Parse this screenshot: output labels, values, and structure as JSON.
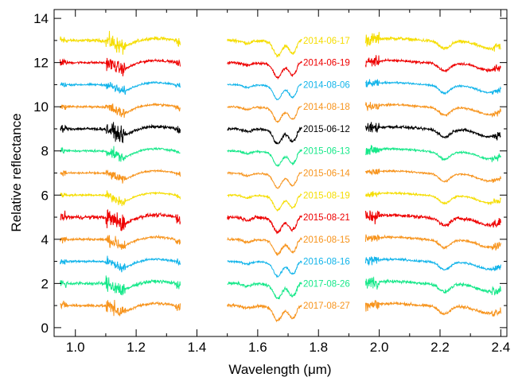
{
  "chart_data": {
    "type": "line",
    "title": "",
    "xlabel": "Wavelength (μm)",
    "ylabel": "Relative reflectance",
    "xlim": [
      0.93,
      2.42
    ],
    "ylim": [
      -0.4,
      14.4
    ],
    "xticks": [
      1.0,
      1.2,
      1.4,
      1.6,
      1.8,
      2.0,
      2.2,
      2.4
    ],
    "xtick_labels": [
      "1.0",
      "1.2",
      "1.4",
      "1.6",
      "1.8",
      "2.0",
      "2.2",
      "2.4"
    ],
    "yticks": [
      0,
      2,
      4,
      6,
      8,
      10,
      12,
      14
    ],
    "ytick_labels": [
      "0",
      "2",
      "4",
      "6",
      "8",
      "10",
      "12",
      "14"
    ],
    "grid": false,
    "wavelength_segments": [
      [
        0.95,
        1.345
      ],
      [
        1.5,
        1.745
      ],
      [
        1.955,
        2.4
      ]
    ],
    "series": [
      {
        "name": "2014-06-17",
        "offset": 13,
        "color": "#f5dd00",
        "noise": 0.09
      },
      {
        "name": "2014-06-19",
        "offset": 12,
        "color": "#ee0000",
        "noise": 0.07
      },
      {
        "name": "2014-08-06",
        "offset": 11,
        "color": "#12b4ea",
        "noise": 0.05
      },
      {
        "name": "2014-08-18",
        "offset": 10,
        "color": "#f7941d",
        "noise": 0.06
      },
      {
        "name": "2015-06-12",
        "offset": 9,
        "color": "#000000",
        "noise": 0.08
      },
      {
        "name": "2015-06-13",
        "offset": 8,
        "color": "#17e88a",
        "noise": 0.06
      },
      {
        "name": "2015-06-14",
        "offset": 7,
        "color": "#f7941d",
        "noise": 0.05
      },
      {
        "name": "2015-08-19",
        "offset": 6,
        "color": "#f5dd00",
        "noise": 0.05
      },
      {
        "name": "2015-08-21",
        "offset": 5,
        "color": "#ee0000",
        "noise": 0.1
      },
      {
        "name": "2016-08-15",
        "offset": 4,
        "color": "#f7941d",
        "noise": 0.07
      },
      {
        "name": "2016-08-16",
        "offset": 3,
        "color": "#12b4ea",
        "noise": 0.06
      },
      {
        "name": "2017-08-26",
        "offset": 2,
        "color": "#17e88a",
        "noise": 0.09
      },
      {
        "name": "2017-08-27",
        "offset": 1,
        "color": "#f7941d",
        "noise": 0.08
      }
    ]
  }
}
